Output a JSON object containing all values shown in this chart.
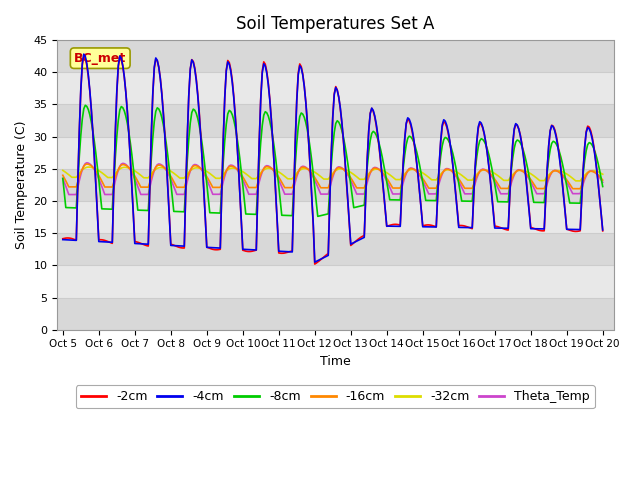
{
  "title": "Soil Temperatures Set A",
  "xlabel": "Time",
  "ylabel": "Soil Temperature (C)",
  "ylim": [
    0,
    45
  ],
  "yticks": [
    0,
    5,
    10,
    15,
    20,
    25,
    30,
    35,
    40,
    45
  ],
  "date_labels": [
    "Oct 5",
    "Oct 6",
    "Oct 7",
    "Oct 8",
    "Oct 9",
    "Oct 10",
    "Oct 11",
    "Oct 12",
    "Oct 13",
    "Oct 14",
    "Oct 15",
    "Oct 16",
    "Oct 17",
    "Oct 18",
    "Oct 19",
    "Oct 20"
  ],
  "series_colors": {
    "-2cm": "#ff0000",
    "-4cm": "#0000ee",
    "-8cm": "#00cc00",
    "-16cm": "#ff8800",
    "-32cm": "#dddd00",
    "Theta_Temp": "#cc44cc"
  },
  "annotation_text": "BC_met",
  "annotation_color": "#cc0000",
  "annotation_bg": "#ffff99",
  "annotation_border": "#999900",
  "band_colors": [
    "#d8d8d8",
    "#e8e8e8"
  ],
  "grid_color": "#cccccc",
  "fig_bg": "#ffffff",
  "legend_fontsize": 9,
  "title_fontsize": 12,
  "lw": 1.2
}
